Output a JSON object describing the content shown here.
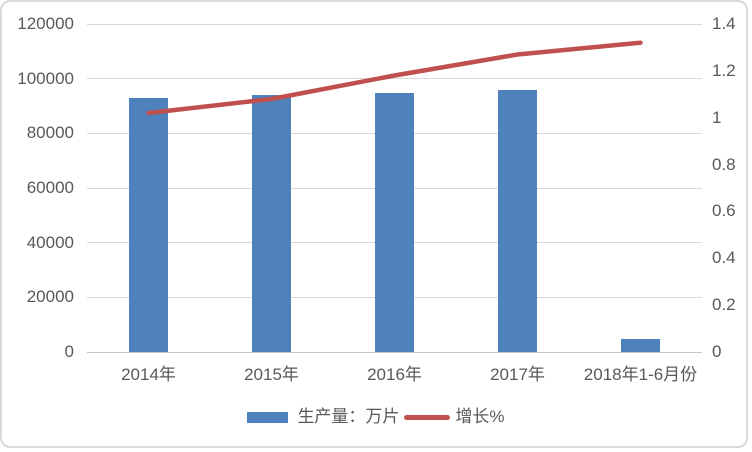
{
  "chart_data": {
    "type": "combo-bar-line",
    "categories": [
      "2014年",
      "2015年",
      "2016年",
      "2017年",
      "2018年1-6月份"
    ],
    "series": [
      {
        "name": "生产量：万片",
        "type": "bar",
        "axis": "left",
        "color": "#4F81BD",
        "values": [
          92800,
          94200,
          94800,
          96000,
          4800
        ]
      },
      {
        "name": "增长%",
        "type": "line",
        "axis": "right",
        "color": "#C0504D",
        "values": [
          1.02,
          1.08,
          1.18,
          1.27,
          1.32
        ]
      }
    ],
    "left_axis": {
      "min": 0,
      "max": 120000,
      "step": 20000,
      "tick_labels": [
        "120000",
        "100000",
        "80000",
        "60000",
        "40000",
        "20000",
        "0"
      ]
    },
    "right_axis": {
      "min": 0,
      "max": 1.4,
      "step": 0.2,
      "tick_labels": [
        "1.4",
        "1.2",
        "1",
        "0.8",
        "0.6",
        "0.4",
        "0.2",
        "0"
      ]
    },
    "grid": true,
    "legend_position": "bottom"
  },
  "colors": {
    "bar": "#4F81BD",
    "line": "#C0504D",
    "axis_text": "#595959",
    "gridline": "#D9D9D9",
    "axis_line": "#C6C6C6",
    "frame_border": "#D9D9D9",
    "background": "#FFFFFF"
  }
}
